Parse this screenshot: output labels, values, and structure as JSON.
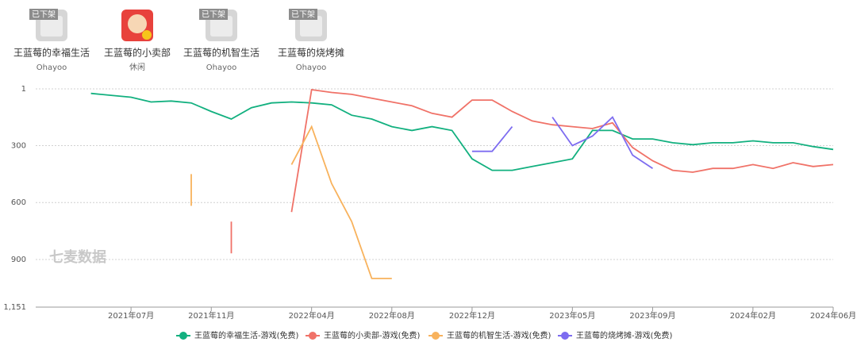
{
  "apps": [
    {
      "name": "王蓝莓的幸福生活",
      "sub": "Ohayoo",
      "badge": "已下架"
    },
    {
      "name": "王蓝莓的小卖部",
      "sub": "休闲"
    },
    {
      "name": "王蓝莓的机智生活",
      "sub": "Ohayoo",
      "badge": "已下架"
    },
    {
      "name": "王蓝莓的烧烤摊",
      "sub": "Ohayoo",
      "badge": "已下架"
    }
  ],
  "chart_data": {
    "type": "line",
    "watermark": "七麦数据",
    "x": [
      "2021年03月",
      "2021年04月",
      "2021年05月",
      "2021年06月",
      "2021年07月",
      "2021年08月",
      "2021年09月",
      "2021年10月",
      "2021年11月",
      "2021年12月",
      "2022年01月",
      "2022年02月",
      "2022年03月",
      "2022年04月",
      "2022年05月",
      "2022年06月",
      "2022年07月",
      "2022年08月",
      "2022年09月",
      "2022年10月",
      "2022年11月",
      "2022年12月",
      "2023年01月",
      "2023年02月",
      "2023年03月",
      "2023年04月",
      "2023年05月",
      "2023年06月",
      "2023年07月",
      "2023年08月",
      "2023年09月",
      "2023年10月",
      "2023年11月",
      "2023年12月",
      "2024年01月",
      "2024年02月",
      "2024年03月",
      "2024年04月",
      "2024年05月",
      "2024年06月"
    ],
    "xticks": [
      "2021年07月",
      "2021年11月",
      "2022年04月",
      "2022年08月",
      "2022年12月",
      "2023年05月",
      "2023年09月",
      "2024年02月",
      "2024年06月"
    ],
    "ylim": [
      1,
      1151
    ],
    "y_inverted": true,
    "yticks": [
      1,
      300,
      600,
      900,
      {
        "value": 1151,
        "label": "1,151"
      }
    ],
    "grid": true,
    "series": [
      {
        "name": "王蓝莓的幸福生活-游戏(免费)",
        "color": "#12b07f",
        "values": [
          null,
          null,
          25,
          35,
          45,
          70,
          65,
          75,
          120,
          160,
          100,
          75,
          70,
          75,
          85,
          140,
          160,
          200,
          220,
          200,
          220,
          370,
          430,
          430,
          410,
          390,
          370,
          220,
          220,
          265,
          265,
          285,
          295,
          285,
          285,
          275,
          285,
          285,
          305,
          320
        ]
      },
      {
        "name": "王蓝莓的小卖部-游戏(免费)",
        "color": "#f07268",
        "values": [
          null,
          null,
          null,
          null,
          null,
          null,
          null,
          null,
          null,
          700,
          null,
          null,
          650,
          5,
          20,
          30,
          50,
          70,
          90,
          130,
          150,
          60,
          60,
          120,
          170,
          190,
          200,
          210,
          180,
          310,
          380,
          430,
          440,
          420,
          420,
          400,
          420,
          390,
          410,
          400
        ]
      },
      {
        "name": "王蓝莓的机智生活-游戏(免费)",
        "color": "#f8b25c",
        "values": [
          null,
          null,
          null,
          null,
          null,
          null,
          null,
          450,
          null,
          null,
          null,
          null,
          400,
          200,
          500,
          700,
          1000,
          1000,
          null,
          null,
          null,
          null,
          null,
          null,
          null,
          null,
          null,
          null,
          null,
          null,
          null,
          null,
          null,
          null,
          null,
          null,
          null,
          null,
          null,
          null
        ]
      },
      {
        "name": "王蓝莓的烧烤摊-游戏(免费)",
        "color": "#7d6cf0",
        "values": [
          null,
          null,
          null,
          null,
          null,
          null,
          null,
          null,
          null,
          null,
          null,
          null,
          null,
          null,
          null,
          null,
          null,
          null,
          null,
          null,
          null,
          330,
          330,
          200,
          null,
          150,
          300,
          250,
          150,
          350,
          420,
          null,
          null,
          null,
          null,
          null,
          null,
          null,
          null,
          null
        ]
      }
    ]
  }
}
